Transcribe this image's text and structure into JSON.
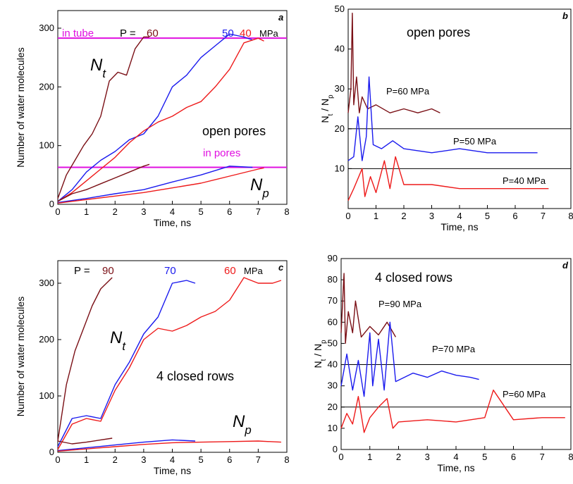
{
  "figure": {
    "panels": [
      "a",
      "b",
      "c",
      "d"
    ]
  },
  "chart_data": [
    {
      "id": "a",
      "type": "line",
      "panel_label": "a",
      "title": "open pores",
      "xlabel": "Time, ns",
      "ylabel": "Number of water molecules",
      "xlim": [
        0,
        8
      ],
      "ylim": [
        0,
        330
      ],
      "x_ticks": [
        0,
        1,
        2,
        3,
        4,
        5,
        6,
        7,
        8
      ],
      "y_ticks": [
        0,
        100,
        200,
        300
      ],
      "reference_lines": [
        {
          "label": "in tube",
          "y": 283,
          "color": "#e010e0"
        },
        {
          "label": "in pores",
          "y": 63,
          "color": "#e010e0"
        }
      ],
      "curve_labels": [
        "N_t",
        "N_p"
      ],
      "pressure_labels": {
        "prefix": "P = ",
        "values": [
          "60",
          "50",
          "40"
        ],
        "unit": "MPa"
      },
      "series": [
        {
          "name": "60",
          "group": "Nt",
          "color": "#7a0f15",
          "x": [
            0,
            0.3,
            0.6,
            0.9,
            1.2,
            1.5,
            1.8,
            2.1,
            2.4,
            2.7,
            3.0,
            3.2
          ],
          "y": [
            10,
            50,
            75,
            100,
            120,
            150,
            210,
            225,
            220,
            265,
            285,
            285
          ]
        },
        {
          "name": "50",
          "group": "Nt",
          "color": "#1a1aee",
          "x": [
            0,
            0.5,
            1.0,
            1.5,
            2.0,
            2.5,
            3.0,
            3.5,
            4.0,
            4.5,
            5.0,
            5.5,
            6.0,
            6.5,
            6.8
          ],
          "y": [
            5,
            25,
            55,
            75,
            90,
            110,
            120,
            150,
            200,
            220,
            250,
            270,
            290,
            285,
            280
          ]
        },
        {
          "name": "40",
          "group": "Nt",
          "color": "#ee1a1a",
          "x": [
            0,
            0.5,
            1.0,
            1.5,
            2.0,
            2.5,
            3.0,
            3.5,
            4.0,
            4.5,
            5.0,
            5.5,
            6.0,
            6.5,
            7.0,
            7.2
          ],
          "y": [
            5,
            20,
            40,
            60,
            80,
            105,
            125,
            140,
            150,
            165,
            175,
            200,
            230,
            275,
            283,
            278
          ]
        },
        {
          "name": "60",
          "group": "Np",
          "color": "#7a0f15",
          "x": [
            0,
            0.5,
            1.0,
            1.5,
            2.0,
            2.5,
            3.0,
            3.2
          ],
          "y": [
            5,
            18,
            25,
            35,
            45,
            55,
            65,
            68
          ]
        },
        {
          "name": "50",
          "group": "Np",
          "color": "#1a1aee",
          "x": [
            0,
            1,
            2,
            3,
            4,
            5,
            6,
            6.8
          ],
          "y": [
            3,
            10,
            18,
            25,
            38,
            50,
            65,
            63
          ]
        },
        {
          "name": "40",
          "group": "Np",
          "color": "#ee1a1a",
          "x": [
            0,
            1,
            2,
            3,
            4,
            5,
            6,
            7,
            7.2
          ],
          "y": [
            2,
            8,
            14,
            20,
            28,
            36,
            48,
            60,
            62
          ]
        }
      ]
    },
    {
      "id": "b",
      "type": "line",
      "panel_label": "b",
      "title": "open pores",
      "xlabel": "Time, ns",
      "ylabel": "N_t / N_p",
      "xlim": [
        0,
        8
      ],
      "ylim": [
        0,
        50
      ],
      "x_ticks": [
        0,
        1,
        2,
        3,
        4,
        5,
        6,
        7,
        8
      ],
      "y_ticks": [
        10,
        20,
        30,
        40,
        50
      ],
      "reference_lines": [
        {
          "y": 20,
          "color": "#000000"
        },
        {
          "y": 10,
          "color": "#000000"
        }
      ],
      "series": [
        {
          "name": "P=60 MPa",
          "color": "#7a0f15",
          "x": [
            0.0,
            0.1,
            0.15,
            0.2,
            0.3,
            0.4,
            0.5,
            0.7,
            1.0,
            1.5,
            2.0,
            2.5,
            3.0,
            3.3
          ],
          "y": [
            24,
            30,
            49,
            26,
            33,
            24,
            28,
            25,
            26,
            24,
            25,
            24,
            25,
            24
          ]
        },
        {
          "name": "P=50 MPa",
          "color": "#1a1aee",
          "x": [
            0.0,
            0.2,
            0.35,
            0.5,
            0.65,
            0.75,
            0.9,
            1.2,
            1.6,
            2.0,
            3.0,
            4.0,
            5.0,
            6.0,
            6.8
          ],
          "y": [
            12,
            13,
            23,
            12,
            18,
            33,
            16,
            15,
            17,
            15,
            14,
            15,
            14,
            14,
            14
          ]
        },
        {
          "name": "P=40 MPa",
          "color": "#ee1a1a",
          "x": [
            0.0,
            0.2,
            0.5,
            0.6,
            0.8,
            1.0,
            1.3,
            1.5,
            1.7,
            2.0,
            3.0,
            4.0,
            5.0,
            6.0,
            7.0,
            7.2
          ],
          "y": [
            2,
            5,
            10,
            3,
            8,
            4,
            12,
            5,
            13,
            6,
            6,
            5,
            5,
            5,
            5,
            5
          ]
        }
      ]
    },
    {
      "id": "c",
      "type": "line",
      "panel_label": "c",
      "title": "4 closed rows",
      "xlabel": "Time, ns",
      "ylabel": "Number of water molecules",
      "xlim": [
        0,
        8
      ],
      "ylim": [
        0,
        340
      ],
      "x_ticks": [
        0,
        1,
        2,
        3,
        4,
        5,
        6,
        7,
        8
      ],
      "y_ticks": [
        0,
        100,
        200,
        300
      ],
      "curve_labels": [
        "N_t",
        "N_p"
      ],
      "pressure_labels": {
        "prefix": "P = ",
        "values": [
          "90",
          "70",
          "60"
        ],
        "unit": "MPa"
      },
      "series": [
        {
          "name": "90",
          "group": "Nt",
          "color": "#7a0f15",
          "x": [
            0,
            0.3,
            0.6,
            0.9,
            1.2,
            1.5,
            1.8,
            1.9
          ],
          "y": [
            20,
            120,
            180,
            220,
            260,
            290,
            305,
            310
          ]
        },
        {
          "name": "70",
          "group": "Nt",
          "color": "#1a1aee",
          "x": [
            0,
            0.5,
            1.0,
            1.5,
            2.0,
            2.5,
            3.0,
            3.5,
            4.0,
            4.5,
            4.8
          ],
          "y": [
            10,
            60,
            65,
            60,
            120,
            160,
            210,
            240,
            300,
            305,
            300
          ]
        },
        {
          "name": "60",
          "group": "Nt",
          "color": "#ee1a1a",
          "x": [
            0,
            0.5,
            1.0,
            1.5,
            2.0,
            2.5,
            3.0,
            3.5,
            4.0,
            4.5,
            5.0,
            5.5,
            6.0,
            6.5,
            7.0,
            7.5,
            7.8
          ],
          "y": [
            5,
            50,
            60,
            55,
            110,
            150,
            200,
            220,
            215,
            225,
            240,
            250,
            270,
            310,
            300,
            300,
            305
          ]
        },
        {
          "name": "90",
          "group": "Np",
          "color": "#7a0f15",
          "x": [
            0,
            0.5,
            1.0,
            1.5,
            1.9
          ],
          "y": [
            20,
            15,
            18,
            22,
            25
          ]
        },
        {
          "name": "70",
          "group": "Np",
          "color": "#1a1aee",
          "x": [
            0,
            1,
            2,
            3,
            4,
            4.8
          ],
          "y": [
            3,
            8,
            13,
            18,
            22,
            20
          ]
        },
        {
          "name": "60",
          "group": "Np",
          "color": "#ee1a1a",
          "x": [
            0,
            1,
            2,
            3,
            4,
            5,
            6,
            7,
            7.8
          ],
          "y": [
            2,
            6,
            10,
            14,
            17,
            18,
            19,
            20,
            18
          ]
        }
      ]
    },
    {
      "id": "d",
      "type": "line",
      "panel_label": "d",
      "title": "4 closed rows",
      "xlabel": "Time, ns",
      "ylabel": "N_t / N_p",
      "xlim": [
        0,
        8
      ],
      "ylim": [
        0,
        90
      ],
      "x_ticks": [
        0,
        1,
        2,
        3,
        4,
        5,
        6,
        7,
        8
      ],
      "y_ticks": [
        0,
        10,
        20,
        30,
        40,
        50,
        60,
        70,
        80,
        90
      ],
      "reference_lines": [
        {
          "y": 40,
          "color": "#000000"
        },
        {
          "y": 20,
          "color": "#000000"
        }
      ],
      "series": [
        {
          "name": "P=90 MPa",
          "color": "#7a0f15",
          "x": [
            0.0,
            0.1,
            0.15,
            0.25,
            0.4,
            0.5,
            0.7,
            1.0,
            1.3,
            1.6,
            1.9
          ],
          "y": [
            55,
            83,
            50,
            65,
            55,
            70,
            53,
            58,
            54,
            60,
            53
          ]
        },
        {
          "name": "P=70 MPa",
          "color": "#1a1aee",
          "x": [
            0.0,
            0.2,
            0.4,
            0.6,
            0.8,
            1.0,
            1.1,
            1.3,
            1.5,
            1.7,
            1.9,
            2.5,
            3.0,
            3.5,
            4.0,
            4.5,
            4.8
          ],
          "y": [
            30,
            45,
            28,
            42,
            25,
            55,
            30,
            52,
            28,
            60,
            32,
            36,
            34,
            37,
            35,
            34,
            33
          ]
        },
        {
          "name": "P=60 MPa",
          "color": "#ee1a1a",
          "x": [
            0.0,
            0.2,
            0.4,
            0.6,
            0.8,
            1.0,
            1.3,
            1.6,
            1.8,
            2.0,
            3.0,
            4.0,
            5.0,
            5.3,
            6.0,
            7.0,
            7.8
          ],
          "y": [
            10,
            17,
            12,
            25,
            8,
            15,
            20,
            24,
            10,
            13,
            14,
            13,
            15,
            28,
            14,
            15,
            15
          ]
        }
      ]
    }
  ]
}
